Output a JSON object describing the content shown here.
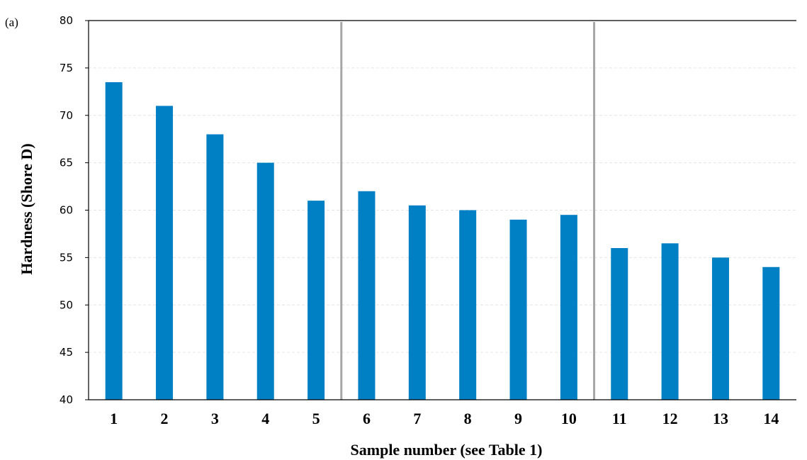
{
  "panel_label": "(a)",
  "colors": {
    "bar": "#0080c4",
    "separator": "#a6a6a6",
    "grid": "#e6e6e6",
    "axis": "#000000"
  },
  "chart_data": {
    "type": "bar",
    "title": "",
    "xlabel": "Sample number (see Table 1)",
    "ylabel": "Hardness (Shore D)",
    "ylim": [
      40,
      80
    ],
    "yticks": [
      40,
      45,
      50,
      55,
      60,
      65,
      70,
      75,
      80
    ],
    "grid": true,
    "legend": "none",
    "categories": [
      "1",
      "2",
      "3",
      "4",
      "5",
      "6",
      "7",
      "8",
      "9",
      "10",
      "11",
      "12",
      "13",
      "14"
    ],
    "values": [
      73.5,
      71,
      68,
      65,
      61,
      62,
      60.5,
      60,
      59,
      59.5,
      56,
      56.5,
      55,
      54
    ],
    "group_separators_after": [
      "5",
      "10"
    ]
  }
}
